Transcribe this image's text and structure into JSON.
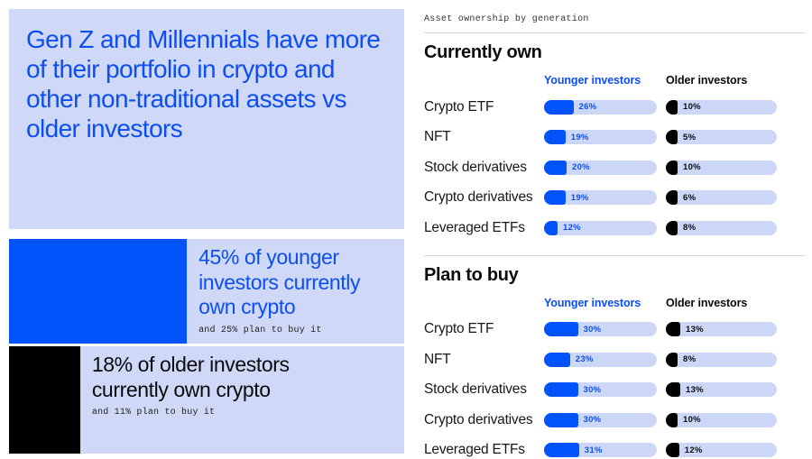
{
  "colors": {
    "accent_blue": "#0353fa",
    "text_blue": "#0d4ef0",
    "light_blue_bg": "#cfd8f7",
    "pill_track": "#ccd7f8",
    "black": "#000000"
  },
  "left_panel": {
    "headline": "Gen Z and Millennials have more of their portfolio in crypto and other non-traditional assets vs older investors",
    "callouts": [
      {
        "stat_text": "45% of younger investors currently own crypto",
        "note": "and 25% plan to buy it",
        "bar_width_pct": 45,
        "bar_color": "blue"
      },
      {
        "stat_text": "18% of older investors currently own crypto",
        "note": "and 11% plan to buy it",
        "bar_width_pct": 18,
        "bar_color": "black"
      }
    ]
  },
  "right_panel": {
    "eyebrow": "Asset ownership by generation",
    "column_headers": {
      "younger": "Younger investors",
      "older": "Older investors"
    },
    "sections": [
      {
        "title": "Currently own",
        "rows": [
          {
            "label": "Crypto ETF",
            "younger": "26%",
            "older": "10%"
          },
          {
            "label": "NFT",
            "younger": "19%",
            "older": "5%"
          },
          {
            "label": "Stock derivatives",
            "younger": "20%",
            "older": "10%"
          },
          {
            "label": "Crypto derivatives",
            "younger": "19%",
            "older": "6%"
          },
          {
            "label": "Leveraged ETFs",
            "younger": "12%",
            "older": "8%"
          }
        ]
      },
      {
        "title": "Plan to buy",
        "rows": [
          {
            "label": "Crypto ETF",
            "younger": "30%",
            "older": "13%"
          },
          {
            "label": "NFT",
            "younger": "23%",
            "older": "8%"
          },
          {
            "label": "Stock derivatives",
            "younger": "30%",
            "older": "13%"
          },
          {
            "label": "Crypto derivatives",
            "younger": "30%",
            "older": "10%"
          },
          {
            "label": "Leveraged ETFs",
            "younger": "31%",
            "older": "12%"
          }
        ]
      }
    ]
  },
  "chart_data": [
    {
      "type": "bar",
      "title": "Currently own",
      "subtitle": "Asset ownership by generation",
      "categories": [
        "Crypto ETF",
        "NFT",
        "Stock derivatives",
        "Crypto derivatives",
        "Leveraged ETFs"
      ],
      "series": [
        {
          "name": "Younger investors",
          "values": [
            26,
            19,
            20,
            19,
            12
          ],
          "color": "#0353fa"
        },
        {
          "name": "Older investors",
          "values": [
            10,
            5,
            10,
            6,
            8
          ],
          "color": "#000000"
        }
      ],
      "unit": "%",
      "xlim": [
        0,
        100
      ],
      "orientation": "horizontal",
      "legend_position": "top"
    },
    {
      "type": "bar",
      "title": "Plan to buy",
      "categories": [
        "Crypto ETF",
        "NFT",
        "Stock derivatives",
        "Crypto derivatives",
        "Leveraged ETFs"
      ],
      "series": [
        {
          "name": "Younger investors",
          "values": [
            30,
            23,
            30,
            30,
            31
          ],
          "color": "#0353fa"
        },
        {
          "name": "Older investors",
          "values": [
            13,
            8,
            13,
            10,
            12
          ],
          "color": "#000000"
        }
      ],
      "unit": "%",
      "xlim": [
        0,
        100
      ],
      "orientation": "horizontal",
      "legend_position": "top"
    },
    {
      "type": "bar",
      "title": "Crypto ownership callouts",
      "categories": [
        "Younger investors currently own crypto",
        "Older investors currently own crypto"
      ],
      "values": [
        45,
        18
      ],
      "annotations": [
        "and 25% plan to buy it",
        "and 11% plan to buy it"
      ],
      "unit": "%",
      "orientation": "horizontal"
    }
  ]
}
